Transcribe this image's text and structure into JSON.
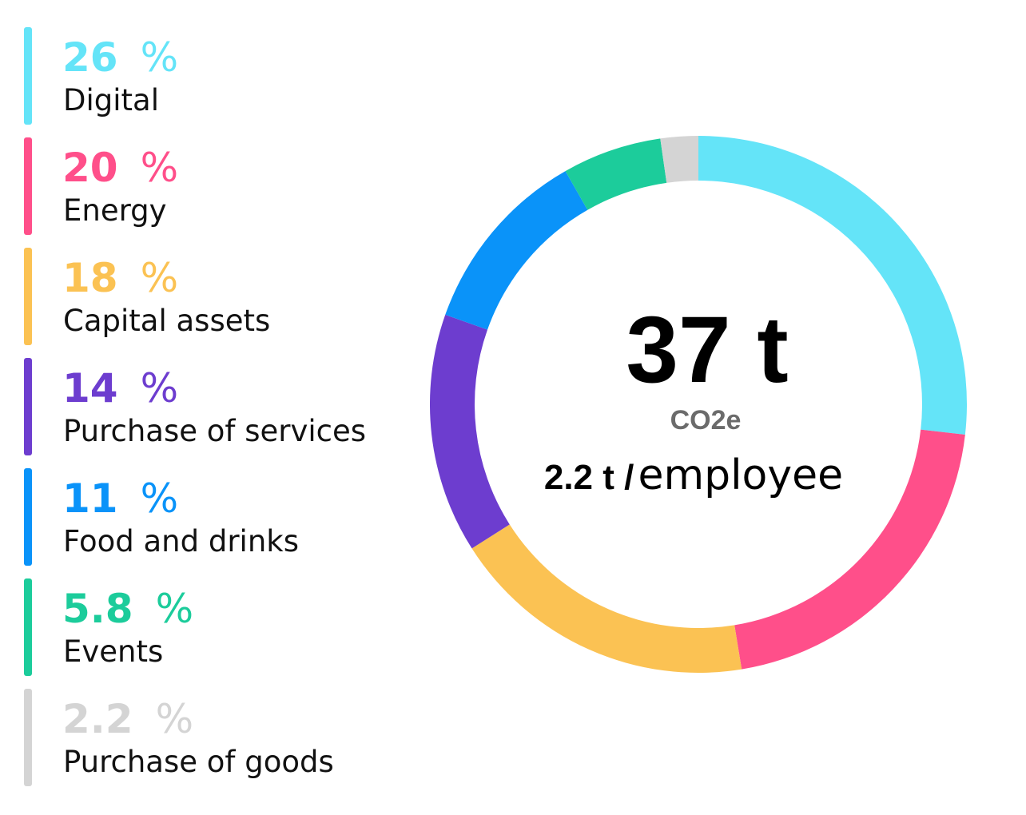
{
  "chart_data": {
    "type": "pie",
    "subtype": "donut",
    "categories": [
      "Digital",
      "Energy",
      "Capital assets",
      "Purchase of services",
      "Food and drinks",
      "Events",
      "Purchase of goods"
    ],
    "values": [
      26,
      20,
      18,
      14,
      11,
      5.8,
      2.2
    ],
    "value_labels": [
      "26",
      "20",
      "18",
      "14",
      "11",
      "5.8",
      "2.2"
    ],
    "unit": "%",
    "colors": [
      "#64E4F8",
      "#FF4F8A",
      "#FBC253",
      "#6D3DCF",
      "#0A93F9",
      "#1CCC9B",
      "#D4D4D4"
    ],
    "start_angle": "top (12 o'clock)",
    "direction": "clockwise",
    "legend_position": "left",
    "center": {
      "total": "37 t",
      "unit": "CO2e",
      "per_value": "2.2 t /",
      "per_label": "employee"
    }
  }
}
